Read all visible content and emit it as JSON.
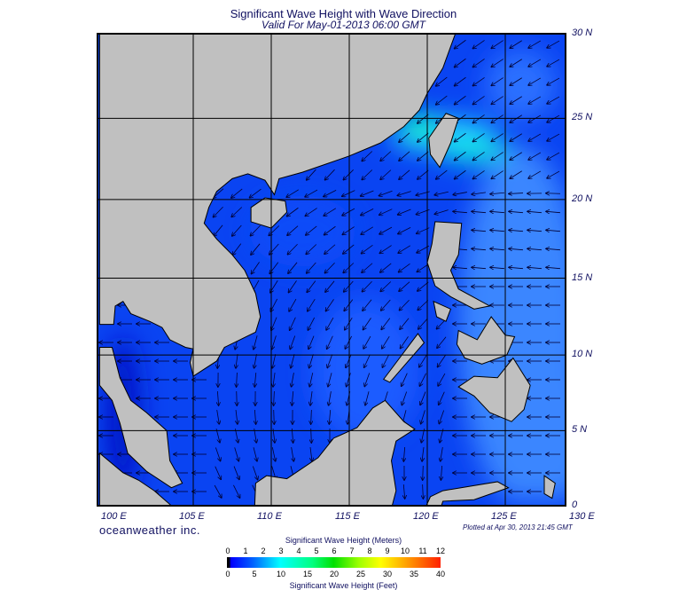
{
  "title": "Significant Wave Height with Wave Direction",
  "subtitle": "Valid For May-01-2013 06:00 GMT",
  "map": {
    "lon_range": [
      100,
      130
    ],
    "lat_range": [
      0,
      30
    ],
    "land_color": "#c0c0c0",
    "ocean_base_color": "#0a44f2",
    "lon_labels": [
      "100 E",
      "105 E",
      "110 E",
      "115 E",
      "120 E",
      "125 E",
      "130 E"
    ],
    "lat_labels": [
      "30 N",
      "25 N",
      "20 N",
      "15 N",
      "10 N",
      "5 N",
      "0"
    ]
  },
  "brand": "oceanweather inc.",
  "plotted": "Plotted at Apr 30, 2013 21:45 GMT",
  "colorbar": {
    "title_m": "Significant Wave Height (Meters)",
    "title_ft": "Significant Wave Height (Feet)",
    "ticks_m": [
      "0",
      "1",
      "2",
      "3",
      "4",
      "5",
      "6",
      "7",
      "8",
      "9",
      "10",
      "11",
      "12"
    ],
    "ticks_ft": [
      "0",
      "5",
      "10",
      "15",
      "20",
      "25",
      "30",
      "35",
      "40"
    ]
  }
}
